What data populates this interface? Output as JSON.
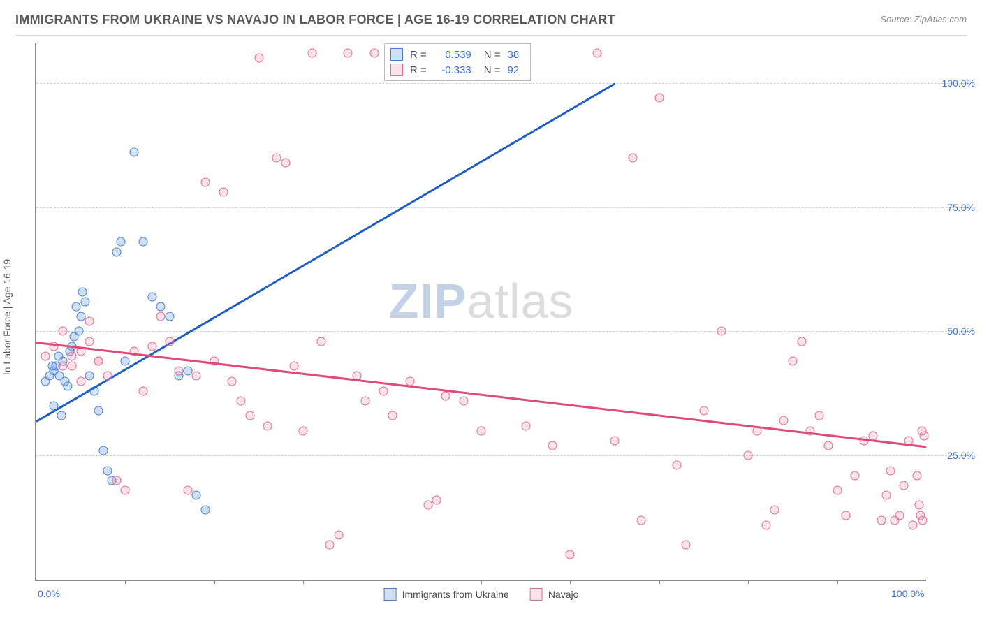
{
  "title": "IMMIGRANTS FROM UKRAINE VS NAVAJO IN LABOR FORCE | AGE 16-19 CORRELATION CHART",
  "source": "Source: ZipAtlas.com",
  "ylabel": "In Labor Force | Age 16-19",
  "watermark": {
    "part1": "ZIP",
    "part2": "atlas"
  },
  "xlim": [
    0,
    100
  ],
  "ylim": [
    0,
    108
  ],
  "yticks": [
    {
      "v": 25,
      "label": "25.0%"
    },
    {
      "v": 50,
      "label": "50.0%"
    },
    {
      "v": 75,
      "label": "75.0%"
    },
    {
      "v": 100,
      "label": "100.0%"
    }
  ],
  "xticks_labels": [
    {
      "v": 0,
      "label": "0.0%"
    },
    {
      "v": 100,
      "label": "100.0%"
    }
  ],
  "xticks_minor": [
    10,
    20,
    30,
    40,
    50,
    60,
    70,
    80,
    90
  ],
  "grid_dashed": true,
  "series": [
    {
      "name": "Immigrants from Ukraine",
      "key": "ukraine",
      "R": "0.539",
      "N": "38",
      "marker_fill": "rgba(120,165,224,0.35)",
      "marker_stroke": "#4a7fd0",
      "marker_size": 13,
      "trend": {
        "x1": 0,
        "y1": 32,
        "x2": 65,
        "y2": 100,
        "color": "#1f5fc4"
      },
      "points": [
        [
          1,
          40
        ],
        [
          1.5,
          41
        ],
        [
          2,
          42
        ],
        [
          2.2,
          43
        ],
        [
          2.5,
          45
        ],
        [
          3,
          44
        ],
        [
          3.2,
          40
        ],
        [
          3.5,
          39
        ],
        [
          4,
          47
        ],
        [
          4.2,
          49
        ],
        [
          4.5,
          55
        ],
        [
          5,
          53
        ],
        [
          5.2,
          58
        ],
        [
          5.5,
          56
        ],
        [
          6,
          41
        ],
        [
          6.5,
          38
        ],
        [
          7,
          34
        ],
        [
          7.5,
          26
        ],
        [
          8,
          22
        ],
        [
          8.5,
          20
        ],
        [
          9,
          66
        ],
        [
          9.5,
          68
        ],
        [
          10,
          44
        ],
        [
          11,
          86
        ],
        [
          12,
          68
        ],
        [
          13,
          57
        ],
        [
          14,
          55
        ],
        [
          15,
          53
        ],
        [
          16,
          41
        ],
        [
          17,
          42
        ],
        [
          18,
          17
        ],
        [
          19,
          14
        ],
        [
          2,
          35
        ],
        [
          2.8,
          33
        ],
        [
          3.8,
          46
        ],
        [
          4.8,
          50
        ],
        [
          1.8,
          43
        ],
        [
          2.6,
          41
        ]
      ]
    },
    {
      "name": "Navajo",
      "key": "navajo",
      "R": "-0.333",
      "N": "92",
      "marker_fill": "rgba(238,140,170,0.25)",
      "marker_stroke": "#e06a90",
      "marker_size": 13,
      "trend": {
        "x1": 0,
        "y1": 48,
        "x2": 100,
        "y2": 27,
        "color": "#e04a78"
      },
      "points": [
        [
          1,
          45
        ],
        [
          2,
          47
        ],
        [
          3,
          50
        ],
        [
          4,
          43
        ],
        [
          5,
          40
        ],
        [
          6,
          52
        ],
        [
          7,
          44
        ],
        [
          8,
          41
        ],
        [
          9,
          20
        ],
        [
          10,
          18
        ],
        [
          11,
          46
        ],
        [
          12,
          38
        ],
        [
          13,
          47
        ],
        [
          14,
          53
        ],
        [
          15,
          48
        ],
        [
          16,
          42
        ],
        [
          17,
          18
        ],
        [
          18,
          41
        ],
        [
          19,
          80
        ],
        [
          20,
          44
        ],
        [
          21,
          78
        ],
        [
          22,
          40
        ],
        [
          23,
          36
        ],
        [
          24,
          33
        ],
        [
          25,
          105
        ],
        [
          26,
          31
        ],
        [
          27,
          85
        ],
        [
          28,
          84
        ],
        [
          29,
          43
        ],
        [
          30,
          30
        ],
        [
          31,
          106
        ],
        [
          32,
          48
        ],
        [
          33,
          7
        ],
        [
          34,
          9
        ],
        [
          35,
          106
        ],
        [
          36,
          41
        ],
        [
          37,
          36
        ],
        [
          38,
          106
        ],
        [
          39,
          38
        ],
        [
          40,
          33
        ],
        [
          42,
          40
        ],
        [
          44,
          15
        ],
        [
          45,
          16
        ],
        [
          46,
          37
        ],
        [
          48,
          36
        ],
        [
          50,
          30
        ],
        [
          55,
          31
        ],
        [
          58,
          27
        ],
        [
          60,
          5
        ],
        [
          63,
          106
        ],
        [
          65,
          28
        ],
        [
          67,
          85
        ],
        [
          68,
          12
        ],
        [
          70,
          97
        ],
        [
          72,
          23
        ],
        [
          73,
          7
        ],
        [
          75,
          34
        ],
        [
          77,
          50
        ],
        [
          80,
          25
        ],
        [
          81,
          30
        ],
        [
          82,
          11
        ],
        [
          83,
          14
        ],
        [
          84,
          32
        ],
        [
          85,
          44
        ],
        [
          86,
          48
        ],
        [
          87,
          30
        ],
        [
          88,
          33
        ],
        [
          89,
          27
        ],
        [
          90,
          18
        ],
        [
          91,
          13
        ],
        [
          92,
          21
        ],
        [
          93,
          28
        ],
        [
          94,
          29
        ],
        [
          95,
          12
        ],
        [
          95.5,
          17
        ],
        [
          96,
          22
        ],
        [
          96.5,
          12
        ],
        [
          97,
          13
        ],
        [
          97.5,
          19
        ],
        [
          98,
          28
        ],
        [
          98.5,
          11
        ],
        [
          99,
          21
        ],
        [
          99.2,
          15
        ],
        [
          99.4,
          13
        ],
        [
          99.5,
          30
        ],
        [
          99.6,
          12
        ],
        [
          99.8,
          29
        ],
        [
          7,
          44
        ],
        [
          3,
          43
        ],
        [
          4,
          45
        ],
        [
          5,
          46
        ],
        [
          6,
          48
        ]
      ]
    }
  ]
}
